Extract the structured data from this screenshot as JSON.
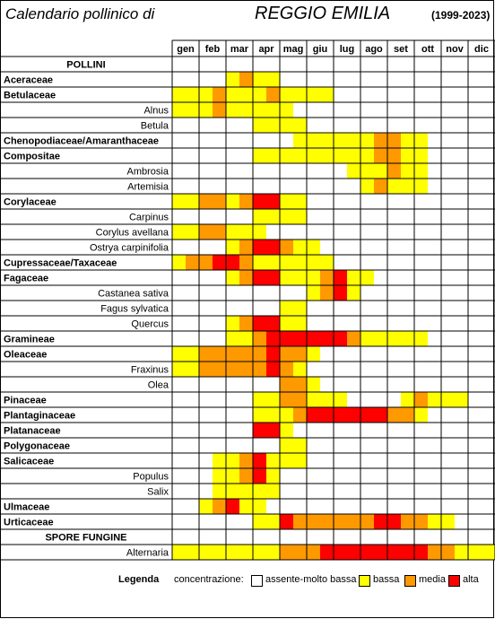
{
  "header": {
    "title_left": "Calendario pollinico di",
    "city": "REGGIO EMILIA",
    "years": "(1999-2023)"
  },
  "months": [
    "gen",
    "feb",
    "mar",
    "apr",
    "mag",
    "giu",
    "lug",
    "ago",
    "set",
    "ott",
    "nov",
    "dic"
  ],
  "colors": {
    "assente": "#ffffff",
    "bassa": "#ffff00",
    "media": "#ff9900",
    "alta": "#ff0000"
  },
  "legend": {
    "title": "Legenda",
    "label": "concentrazione:",
    "items": [
      {
        "key": "assente",
        "label": "assente-molto bassa"
      },
      {
        "key": "bassa",
        "label": "bassa"
      },
      {
        "key": "media",
        "label": "media"
      },
      {
        "key": "alta",
        "label": "alta"
      }
    ]
  },
  "chart_data": {
    "type": "heatmap",
    "title": "Calendario pollinico di REGGIO EMILIA",
    "subtitle": "(1999-2023)",
    "x_categories": [
      "gen",
      "feb",
      "mar",
      "apr",
      "mag",
      "giu",
      "lug",
      "ago",
      "set",
      "ott",
      "nov",
      "dic"
    ],
    "value_scale": {
      "0": "assente-molto bassa",
      "1": "bassa",
      "2": "media",
      "3": "alta"
    },
    "note": "Each row lists 24 half-month values (two per month, gen to dic).",
    "rows": [
      {
        "name": "POLLINI",
        "kind": "section"
      },
      {
        "name": "Aceraceae",
        "kind": "family",
        "values": [
          0,
          0,
          0,
          0,
          1,
          2,
          1,
          1,
          0,
          0,
          0,
          0,
          0,
          0,
          0,
          0,
          0,
          0,
          0,
          0,
          0,
          0,
          0,
          0
        ]
      },
      {
        "name": "Betulaceae",
        "kind": "family",
        "values": [
          1,
          1,
          1,
          2,
          1,
          1,
          1,
          2,
          1,
          1,
          1,
          1,
          0,
          0,
          0,
          0,
          0,
          0,
          0,
          0,
          0,
          0,
          0,
          0
        ]
      },
      {
        "name": "Alnus",
        "kind": "species",
        "values": [
          1,
          1,
          1,
          2,
          1,
          1,
          1,
          1,
          1,
          0,
          0,
          0,
          0,
          0,
          0,
          0,
          0,
          0,
          0,
          0,
          0,
          0,
          0,
          0
        ]
      },
      {
        "name": "Betula",
        "kind": "species",
        "values": [
          0,
          0,
          0,
          0,
          0,
          0,
          1,
          1,
          1,
          1,
          0,
          0,
          0,
          0,
          0,
          0,
          0,
          0,
          0,
          0,
          0,
          0,
          0,
          0
        ]
      },
      {
        "name": "Chenopodiaceae/Amaranthaceae",
        "kind": "family",
        "values": [
          0,
          0,
          0,
          0,
          0,
          0,
          0,
          0,
          0,
          1,
          1,
          1,
          1,
          1,
          1,
          2,
          2,
          1,
          1,
          0,
          0,
          0,
          0,
          0
        ]
      },
      {
        "name": "Compositae",
        "kind": "family",
        "values": [
          0,
          0,
          0,
          0,
          0,
          0,
          1,
          1,
          1,
          1,
          1,
          1,
          1,
          1,
          1,
          2,
          2,
          1,
          1,
          0,
          0,
          0,
          0,
          0
        ]
      },
      {
        "name": "Ambrosia",
        "kind": "species",
        "values": [
          0,
          0,
          0,
          0,
          0,
          0,
          0,
          0,
          0,
          0,
          0,
          0,
          0,
          1,
          1,
          1,
          2,
          1,
          1,
          0,
          0,
          0,
          0,
          0
        ]
      },
      {
        "name": "Artemisia",
        "kind": "species",
        "values": [
          0,
          0,
          0,
          0,
          0,
          0,
          0,
          0,
          0,
          0,
          0,
          0,
          0,
          0,
          1,
          2,
          1,
          1,
          1,
          0,
          0,
          0,
          0,
          0
        ]
      },
      {
        "name": "Corylaceae",
        "kind": "family",
        "values": [
          1,
          1,
          2,
          2,
          1,
          2,
          3,
          3,
          1,
          1,
          0,
          0,
          0,
          0,
          0,
          0,
          0,
          0,
          0,
          0,
          0,
          0,
          0,
          0
        ]
      },
      {
        "name": "Carpinus",
        "kind": "species",
        "values": [
          0,
          0,
          0,
          0,
          0,
          0,
          1,
          1,
          1,
          1,
          0,
          0,
          0,
          0,
          0,
          0,
          0,
          0,
          0,
          0,
          0,
          0,
          0,
          0
        ]
      },
      {
        "name": "Corylus avellana",
        "kind": "species",
        "values": [
          1,
          1,
          2,
          2,
          1,
          1,
          1,
          0,
          0,
          0,
          0,
          0,
          0,
          0,
          0,
          0,
          0,
          0,
          0,
          0,
          0,
          0,
          0,
          0
        ]
      },
      {
        "name": "Ostrya carpinifolia",
        "kind": "species",
        "values": [
          0,
          0,
          0,
          0,
          1,
          2,
          3,
          3,
          2,
          1,
          1,
          0,
          0,
          0,
          0,
          0,
          0,
          0,
          0,
          0,
          0,
          0,
          0,
          0
        ]
      },
      {
        "name": "Cupressaceae/Taxaceae",
        "kind": "family",
        "values": [
          1,
          2,
          2,
          3,
          3,
          2,
          1,
          1,
          1,
          1,
          1,
          1,
          0,
          0,
          0,
          0,
          0,
          0,
          0,
          0,
          0,
          0,
          0,
          0
        ]
      },
      {
        "name": "Fagaceae",
        "kind": "family",
        "values": [
          0,
          0,
          0,
          0,
          1,
          2,
          3,
          3,
          1,
          1,
          1,
          2,
          3,
          1,
          1,
          0,
          0,
          0,
          0,
          0,
          0,
          0,
          0,
          0
        ]
      },
      {
        "name": "Castanea sativa",
        "kind": "species",
        "values": [
          0,
          0,
          0,
          0,
          0,
          0,
          0,
          0,
          0,
          0,
          1,
          2,
          3,
          1,
          0,
          0,
          0,
          0,
          0,
          0,
          0,
          0,
          0,
          0
        ]
      },
      {
        "name": "Fagus sylvatica",
        "kind": "species",
        "values": [
          0,
          0,
          0,
          0,
          0,
          0,
          0,
          0,
          1,
          1,
          0,
          0,
          0,
          0,
          0,
          0,
          0,
          0,
          0,
          0,
          0,
          0,
          0,
          0
        ]
      },
      {
        "name": "Quercus",
        "kind": "species",
        "values": [
          0,
          0,
          0,
          0,
          1,
          2,
          3,
          3,
          1,
          1,
          0,
          0,
          0,
          0,
          0,
          0,
          0,
          0,
          0,
          0,
          0,
          0,
          0,
          0
        ]
      },
      {
        "name": "Gramineae",
        "kind": "family",
        "values": [
          0,
          0,
          0,
          0,
          1,
          1,
          2,
          3,
          3,
          3,
          3,
          3,
          3,
          2,
          1,
          1,
          1,
          1,
          1,
          0,
          0,
          0,
          0,
          0
        ]
      },
      {
        "name": "Oleaceae",
        "kind": "family",
        "values": [
          1,
          1,
          2,
          2,
          2,
          2,
          2,
          3,
          2,
          2,
          1,
          0,
          0,
          0,
          0,
          0,
          0,
          0,
          0,
          0,
          0,
          0,
          0,
          0
        ]
      },
      {
        "name": "Fraxinus",
        "kind": "species",
        "values": [
          1,
          1,
          2,
          2,
          2,
          2,
          2,
          3,
          2,
          1,
          0,
          0,
          0,
          0,
          0,
          0,
          0,
          0,
          0,
          0,
          0,
          0,
          0,
          0
        ]
      },
      {
        "name": "Olea",
        "kind": "species",
        "values": [
          0,
          0,
          0,
          0,
          0,
          0,
          0,
          0,
          2,
          2,
          1,
          0,
          0,
          0,
          0,
          0,
          0,
          0,
          0,
          0,
          0,
          0,
          0,
          0
        ]
      },
      {
        "name": "Pinaceae",
        "kind": "family",
        "values": [
          0,
          0,
          0,
          0,
          0,
          0,
          1,
          1,
          2,
          2,
          1,
          1,
          1,
          0,
          0,
          0,
          0,
          1,
          2,
          1,
          1,
          1,
          0,
          0
        ]
      },
      {
        "name": "Plantaginaceae",
        "kind": "family",
        "values": [
          0,
          0,
          0,
          0,
          0,
          0,
          1,
          1,
          1,
          2,
          3,
          3,
          3,
          3,
          3,
          3,
          2,
          2,
          1,
          0,
          0,
          0,
          0,
          0
        ]
      },
      {
        "name": "Platanaceae",
        "kind": "family",
        "values": [
          0,
          0,
          0,
          0,
          0,
          0,
          3,
          3,
          1,
          0,
          0,
          0,
          0,
          0,
          0,
          0,
          0,
          0,
          0,
          0,
          0,
          0,
          0,
          0
        ]
      },
      {
        "name": "Polygonaceae",
        "kind": "family",
        "values": [
          0,
          0,
          0,
          0,
          0,
          0,
          0,
          0,
          1,
          1,
          0,
          0,
          0,
          0,
          0,
          0,
          0,
          0,
          0,
          0,
          0,
          0,
          0,
          0
        ]
      },
      {
        "name": "Salicaceae",
        "kind": "family",
        "values": [
          0,
          0,
          0,
          1,
          1,
          2,
          3,
          1,
          1,
          1,
          0,
          0,
          0,
          0,
          0,
          0,
          0,
          0,
          0,
          0,
          0,
          0,
          0,
          0
        ]
      },
      {
        "name": "Populus",
        "kind": "species",
        "values": [
          0,
          0,
          0,
          1,
          1,
          2,
          3,
          1,
          0,
          0,
          0,
          0,
          0,
          0,
          0,
          0,
          0,
          0,
          0,
          0,
          0,
          0,
          0,
          0
        ]
      },
      {
        "name": "Salix",
        "kind": "species",
        "values": [
          0,
          0,
          0,
          1,
          1,
          1,
          1,
          1,
          0,
          0,
          0,
          0,
          0,
          0,
          0,
          0,
          0,
          0,
          0,
          0,
          0,
          0,
          0,
          0
        ]
      },
      {
        "name": "Ulmaceae",
        "kind": "family",
        "values": [
          0,
          0,
          1,
          2,
          3,
          1,
          1,
          0,
          0,
          0,
          0,
          0,
          0,
          0,
          0,
          0,
          0,
          0,
          0,
          0,
          0,
          0,
          0,
          0
        ]
      },
      {
        "name": "Urticaceae",
        "kind": "family",
        "values": [
          0,
          0,
          0,
          0,
          0,
          0,
          1,
          1,
          3,
          2,
          2,
          2,
          2,
          2,
          2,
          3,
          3,
          2,
          2,
          1,
          1,
          0,
          0,
          0
        ]
      },
      {
        "name": "SPORE FUNGINE",
        "kind": "section"
      },
      {
        "name": "Alternaria",
        "kind": "species",
        "values": [
          1,
          1,
          1,
          1,
          1,
          1,
          1,
          1,
          2,
          2,
          2,
          3,
          3,
          3,
          3,
          3,
          3,
          3,
          3,
          2,
          2,
          1,
          1,
          1
        ]
      }
    ]
  }
}
